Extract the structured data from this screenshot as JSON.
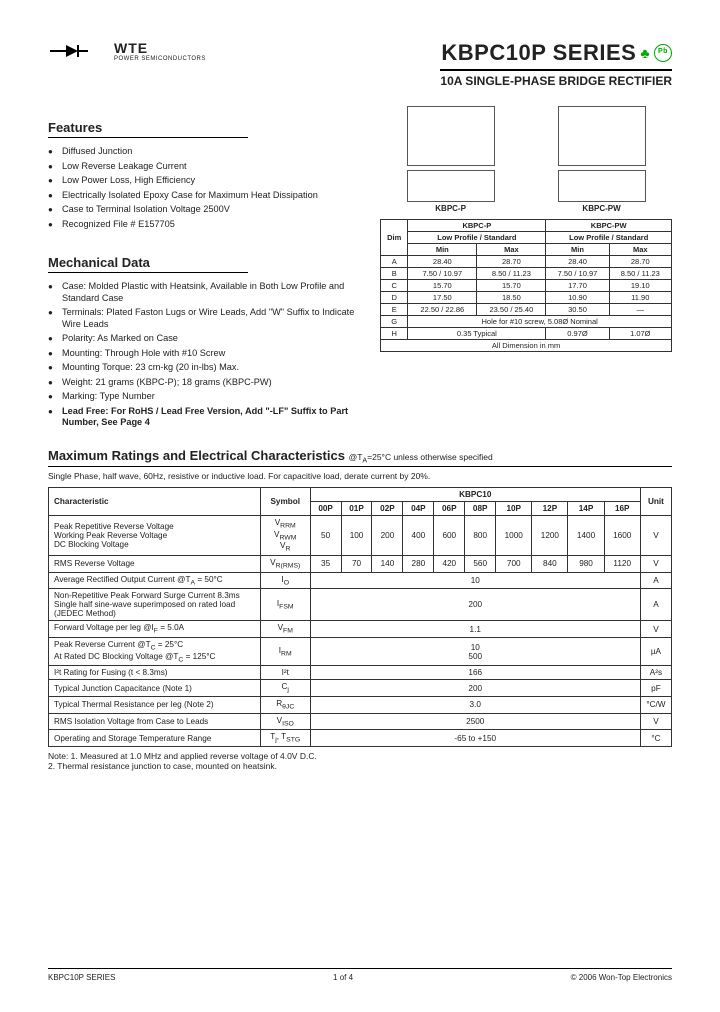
{
  "logo": {
    "brand": "WTE",
    "sub": "POWER SEMICONDUCTORS"
  },
  "title": {
    "main": "KBPC10P SERIES",
    "sub": "10A SINGLE-PHASE BRIDGE RECTIFIER"
  },
  "features": {
    "heading": "Features",
    "items": [
      "Diffused Junction",
      "Low Reverse Leakage Current",
      "Low Power Loss, High Efficiency",
      "Electrically Isolated Epoxy Case for Maximum Heat Dissipation",
      "Case to Terminal Isolation Voltage 2500V",
      "Recognized File # E157705"
    ]
  },
  "mechanical": {
    "heading": "Mechanical Data",
    "items": [
      "Case: Molded Plastic with Heatsink, Available in Both Low Profile and Standard Case",
      "Terminals: Plated Faston Lugs or Wire Leads, Add \"W\" Suffix to Indicate Wire Leads",
      "Polarity: As Marked on Case",
      "Mounting: Through Hole with #10 Screw",
      "Mounting Torque: 23 cm-kg (20 in-lbs) Max.",
      "Weight: 21 grams (KBPC-P); 18 grams (KBPC-PW)",
      "Marking: Type Number",
      "Lead Free: For RoHS / Lead Free Version, Add \"-LF\" Suffix to Part Number, See Page 4"
    ]
  },
  "pkg": {
    "a": "KBPC-P",
    "b": "KBPC-PW",
    "dimhdr": [
      "Dim",
      "Min",
      "Max",
      "Min",
      "Max"
    ],
    "dimsubA": "KBPC-P",
    "dimsubB": "KBPC-PW",
    "dimsub2": "Low Profile / Standard",
    "rows": [
      [
        "A",
        "28.40",
        "28.70",
        "28.40",
        "28.70"
      ],
      [
        "B",
        "7.50 / 10.97",
        "8.50 / 11.23",
        "7.50 / 10.97",
        "8.50 / 11.23"
      ],
      [
        "C",
        "15.70",
        "15.70",
        "17.70",
        "19.10"
      ],
      [
        "D",
        "17.50",
        "18.50",
        "10.90",
        "11.90"
      ],
      [
        "E",
        "22.50 / 22.86",
        "23.50 / 25.40",
        "30.50",
        "—"
      ],
      [
        "G",
        "Hole for #10 screw, 5.08Ø Nominal",
        "",
        "",
        ""
      ],
      [
        "H",
        "0.35 Typical",
        "",
        "0.97Ø",
        "1.07Ø"
      ]
    ],
    "dimfoot": "All Dimension in mm"
  },
  "ratings": {
    "heading": "Maximum Ratings and Electrical Characteristics",
    "cond": "@T",
    "cond2": "=25°C unless otherwise specified",
    "note": "Single Phase, half wave, 60Hz, resistive or inductive load. For capacitive load, derate current by 20%.",
    "cols": [
      "00P",
      "01P",
      "02P",
      "04P",
      "06P",
      "08P",
      "10P",
      "12P",
      "14P",
      "16P"
    ],
    "group": "KBPC10",
    "rows": [
      {
        "c": "Peak Repetitive Reverse Voltage\nWorking Peak Reverse Voltage\nDC Blocking Voltage",
        "s": "V<sub>RRM</sub>\nV<sub>RWM</sub>\nV<sub>R</sub>",
        "v": [
          "50",
          "100",
          "200",
          "400",
          "600",
          "800",
          "1000",
          "1200",
          "1400",
          "1600"
        ],
        "u": "V"
      },
      {
        "c": "RMS Reverse Voltage",
        "s": "V<sub>R(RMS)</sub>",
        "v": [
          "35",
          "70",
          "140",
          "280",
          "420",
          "560",
          "700",
          "840",
          "980",
          "1120"
        ],
        "u": "V"
      },
      {
        "c": "Average Rectified Output Current @T<sub>A</sub> = 50°C",
        "s": "I<sub>O</sub>",
        "span": "10",
        "u": "A"
      },
      {
        "c": "Non-Repetitive Peak Forward Surge Current 8.3ms Single half sine-wave superimposed on rated load (JEDEC Method)",
        "s": "I<sub>FSM</sub>",
        "span": "200",
        "u": "A"
      },
      {
        "c": "Forward Voltage per leg            @I<sub>F</sub> = 5.0A",
        "s": "V<sub>FM</sub>",
        "span": "1.1",
        "u": "V"
      },
      {
        "c": "Peak Reverse Current         @T<sub>C</sub> = 25°C\nAt Rated DC Blocking Voltage   @T<sub>C</sub> = 125°C",
        "s": "I<sub>RM</sub>",
        "span": "10\n500",
        "u": "µA"
      },
      {
        "c": "I²t Rating for Fusing (t < 8.3ms)",
        "s": "I²t",
        "span": "166",
        "u": "A²s"
      },
      {
        "c": "Typical Junction Capacitance (Note 1)",
        "s": "C<sub>j</sub>",
        "span": "200",
        "u": "pF"
      },
      {
        "c": "Typical Thermal Resistance per leg (Note 2)",
        "s": "R<sub>θJC</sub>",
        "span": "3.0",
        "u": "°C/W"
      },
      {
        "c": "RMS Isolation Voltage from Case to Leads",
        "s": "V<sub>ISO</sub>",
        "span": "2500",
        "u": "V"
      },
      {
        "c": "Operating and Storage Temperature Range",
        "s": "T<sub>j</sub>, T<sub>STG</sub>",
        "span": "-65 to +150",
        "u": "°C"
      }
    ],
    "foot": "Note: 1. Measured at 1.0 MHz and applied reverse voltage of 4.0V D.C.\n          2. Thermal resistance junction to case, mounted on heatsink."
  },
  "footer": {
    "left": "KBPC10P SERIES",
    "center": "1 of 4",
    "right": "© 2006 Won-Top Electronics"
  }
}
